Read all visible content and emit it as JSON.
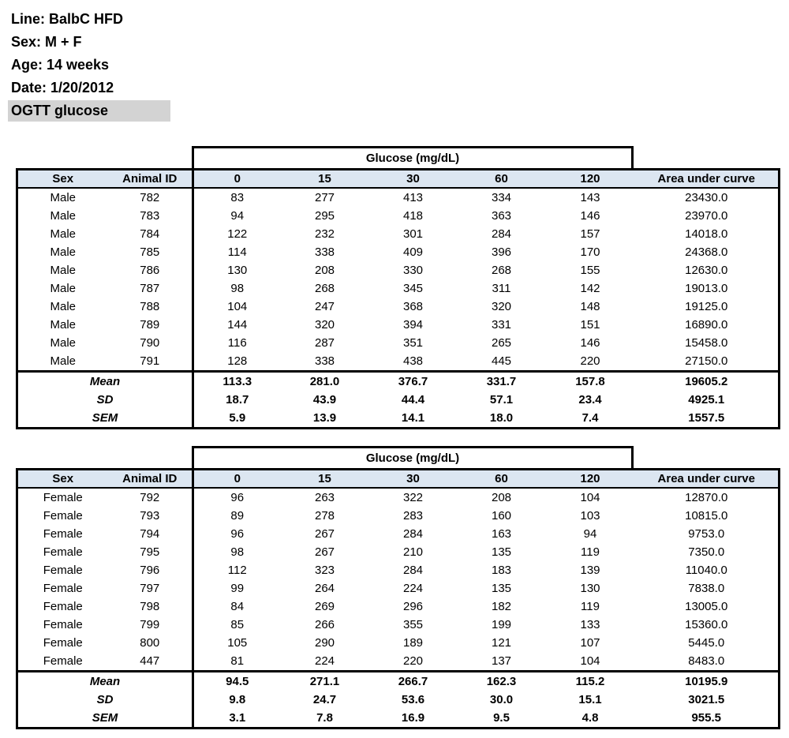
{
  "info": {
    "line": "Line: BalbC HFD",
    "sex": "Sex: M + F",
    "age": "Age: 14 weeks",
    "date": "Date: 1/20/2012",
    "assay": "OGTT glucose"
  },
  "colors": {
    "header_row_bg": "#dce6f1",
    "assay_highlight_bg": "#d3d3d3",
    "border": "#000000"
  },
  "tables": [
    {
      "name": "male",
      "group_header": "Glucose (mg/dL)",
      "columns": [
        "Sex",
        "Animal ID",
        "0",
        "15",
        "30",
        "60",
        "120",
        "Area under curve"
      ],
      "rows": [
        [
          "Male",
          "782",
          "83",
          "277",
          "413",
          "334",
          "143",
          "23430.0"
        ],
        [
          "Male",
          "783",
          "94",
          "295",
          "418",
          "363",
          "146",
          "23970.0"
        ],
        [
          "Male",
          "784",
          "122",
          "232",
          "301",
          "284",
          "157",
          "14018.0"
        ],
        [
          "Male",
          "785",
          "114",
          "338",
          "409",
          "396",
          "170",
          "24368.0"
        ],
        [
          "Male",
          "786",
          "130",
          "208",
          "330",
          "268",
          "155",
          "12630.0"
        ],
        [
          "Male",
          "787",
          "98",
          "268",
          "345",
          "311",
          "142",
          "19013.0"
        ],
        [
          "Male",
          "788",
          "104",
          "247",
          "368",
          "320",
          "148",
          "19125.0"
        ],
        [
          "Male",
          "789",
          "144",
          "320",
          "394",
          "331",
          "151",
          "16890.0"
        ],
        [
          "Male",
          "790",
          "116",
          "287",
          "351",
          "265",
          "146",
          "15458.0"
        ],
        [
          "Male",
          "791",
          "128",
          "338",
          "438",
          "445",
          "220",
          "27150.0"
        ]
      ],
      "stats": [
        {
          "label": "Mean",
          "values": [
            "113.3",
            "281.0",
            "376.7",
            "331.7",
            "157.8",
            "19605.2"
          ]
        },
        {
          "label": "SD",
          "values": [
            "18.7",
            "43.9",
            "44.4",
            "57.1",
            "23.4",
            "4925.1"
          ]
        },
        {
          "label": "SEM",
          "values": [
            "5.9",
            "13.9",
            "14.1",
            "18.0",
            "7.4",
            "1557.5"
          ]
        }
      ]
    },
    {
      "name": "female",
      "group_header": "Glucose (mg/dL)",
      "columns": [
        "Sex",
        "Animal ID",
        "0",
        "15",
        "30",
        "60",
        "120",
        "Area under curve"
      ],
      "rows": [
        [
          "Female",
          "792",
          "96",
          "263",
          "322",
          "208",
          "104",
          "12870.0"
        ],
        [
          "Female",
          "793",
          "89",
          "278",
          "283",
          "160",
          "103",
          "10815.0"
        ],
        [
          "Female",
          "794",
          "96",
          "267",
          "284",
          "163",
          "94",
          "9753.0"
        ],
        [
          "Female",
          "795",
          "98",
          "267",
          "210",
          "135",
          "119",
          "7350.0"
        ],
        [
          "Female",
          "796",
          "112",
          "323",
          "284",
          "183",
          "139",
          "11040.0"
        ],
        [
          "Female",
          "797",
          "99",
          "264",
          "224",
          "135",
          "130",
          "7838.0"
        ],
        [
          "Female",
          "798",
          "84",
          "269",
          "296",
          "182",
          "119",
          "13005.0"
        ],
        [
          "Female",
          "799",
          "85",
          "266",
          "355",
          "199",
          "133",
          "15360.0"
        ],
        [
          "Female",
          "800",
          "105",
          "290",
          "189",
          "121",
          "107",
          "5445.0"
        ],
        [
          "Female",
          "447",
          "81",
          "224",
          "220",
          "137",
          "104",
          "8483.0"
        ]
      ],
      "stats": [
        {
          "label": "Mean",
          "values": [
            "94.5",
            "271.1",
            "266.7",
            "162.3",
            "115.2",
            "10195.9"
          ]
        },
        {
          "label": "SD",
          "values": [
            "9.8",
            "24.7",
            "53.6",
            "30.0",
            "15.1",
            "3021.5"
          ]
        },
        {
          "label": "SEM",
          "values": [
            "3.1",
            "7.8",
            "16.9",
            "9.5",
            "4.8",
            "955.5"
          ]
        }
      ]
    }
  ]
}
